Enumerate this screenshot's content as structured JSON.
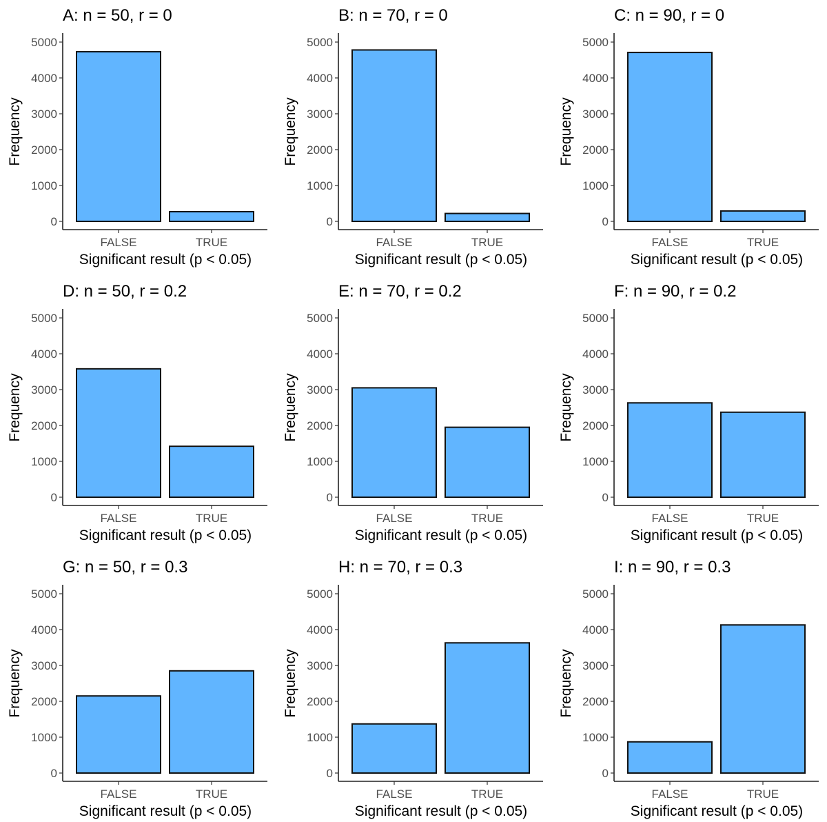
{
  "chart_data": [
    {
      "type": "bar",
      "title": "A: n = 50, r = 0",
      "categories": [
        "FALSE",
        "TRUE"
      ],
      "values": [
        4730,
        270
      ],
      "xlabel": "Significant result (p < 0.05)",
      "ylabel": "Frequency",
      "ylim": [
        0,
        5000
      ],
      "yticks": [
        "0",
        "1000",
        "2000",
        "3000",
        "4000",
        "5000"
      ]
    },
    {
      "type": "bar",
      "title": "B: n = 70, r = 0",
      "categories": [
        "FALSE",
        "TRUE"
      ],
      "values": [
        4780,
        220
      ],
      "xlabel": "Significant result (p < 0.05)",
      "ylabel": "Frequency",
      "ylim": [
        0,
        5000
      ],
      "yticks": [
        "0",
        "1000",
        "2000",
        "3000",
        "4000",
        "5000"
      ]
    },
    {
      "type": "bar",
      "title": "C: n = 90, r = 0",
      "categories": [
        "FALSE",
        "TRUE"
      ],
      "values": [
        4710,
        290
      ],
      "xlabel": "Significant result (p < 0.05)",
      "ylabel": "Frequency",
      "ylim": [
        0,
        5000
      ],
      "yticks": [
        "0",
        "1000",
        "2000",
        "3000",
        "4000",
        "5000"
      ]
    },
    {
      "type": "bar",
      "title": "D: n = 50, r = 0.2",
      "categories": [
        "FALSE",
        "TRUE"
      ],
      "values": [
        3580,
        1420
      ],
      "xlabel": "Significant result (p < 0.05)",
      "ylabel": "Frequency",
      "ylim": [
        0,
        5000
      ],
      "yticks": [
        "0",
        "1000",
        "2000",
        "3000",
        "4000",
        "5000"
      ]
    },
    {
      "type": "bar",
      "title": "E: n = 70, r = 0.2",
      "categories": [
        "FALSE",
        "TRUE"
      ],
      "values": [
        3050,
        1950
      ],
      "xlabel": "Significant result (p < 0.05)",
      "ylabel": "Frequency",
      "ylim": [
        0,
        5000
      ],
      "yticks": [
        "0",
        "1000",
        "2000",
        "3000",
        "4000",
        "5000"
      ]
    },
    {
      "type": "bar",
      "title": "F: n = 90, r = 0.2",
      "categories": [
        "FALSE",
        "TRUE"
      ],
      "values": [
        2630,
        2370
      ],
      "xlabel": "Significant result (p < 0.05)",
      "ylabel": "Frequency",
      "ylim": [
        0,
        5000
      ],
      "yticks": [
        "0",
        "1000",
        "2000",
        "3000",
        "4000",
        "5000"
      ]
    },
    {
      "type": "bar",
      "title": "G: n = 50, r = 0.3",
      "categories": [
        "FALSE",
        "TRUE"
      ],
      "values": [
        2150,
        2850
      ],
      "xlabel": "Significant result (p < 0.05)",
      "ylabel": "Frequency",
      "ylim": [
        0,
        5000
      ],
      "yticks": [
        "0",
        "1000",
        "2000",
        "3000",
        "4000",
        "5000"
      ]
    },
    {
      "type": "bar",
      "title": "H: n = 70, r = 0.3",
      "categories": [
        "FALSE",
        "TRUE"
      ],
      "values": [
        1370,
        3630
      ],
      "xlabel": "Significant result (p < 0.05)",
      "ylabel": "Frequency",
      "ylim": [
        0,
        5000
      ],
      "yticks": [
        "0",
        "1000",
        "2000",
        "3000",
        "4000",
        "5000"
      ]
    },
    {
      "type": "bar",
      "title": "I: n = 90, r = 0.3",
      "categories": [
        "FALSE",
        "TRUE"
      ],
      "values": [
        870,
        4130
      ],
      "xlabel": "Significant result (p < 0.05)",
      "ylabel": "Frequency",
      "ylim": [
        0,
        5000
      ],
      "yticks": [
        "0",
        "1000",
        "2000",
        "3000",
        "4000",
        "5000"
      ]
    }
  ],
  "colors": {
    "bar_fill": "#61b5ff",
    "bar_stroke": "#111111",
    "grid": false
  }
}
